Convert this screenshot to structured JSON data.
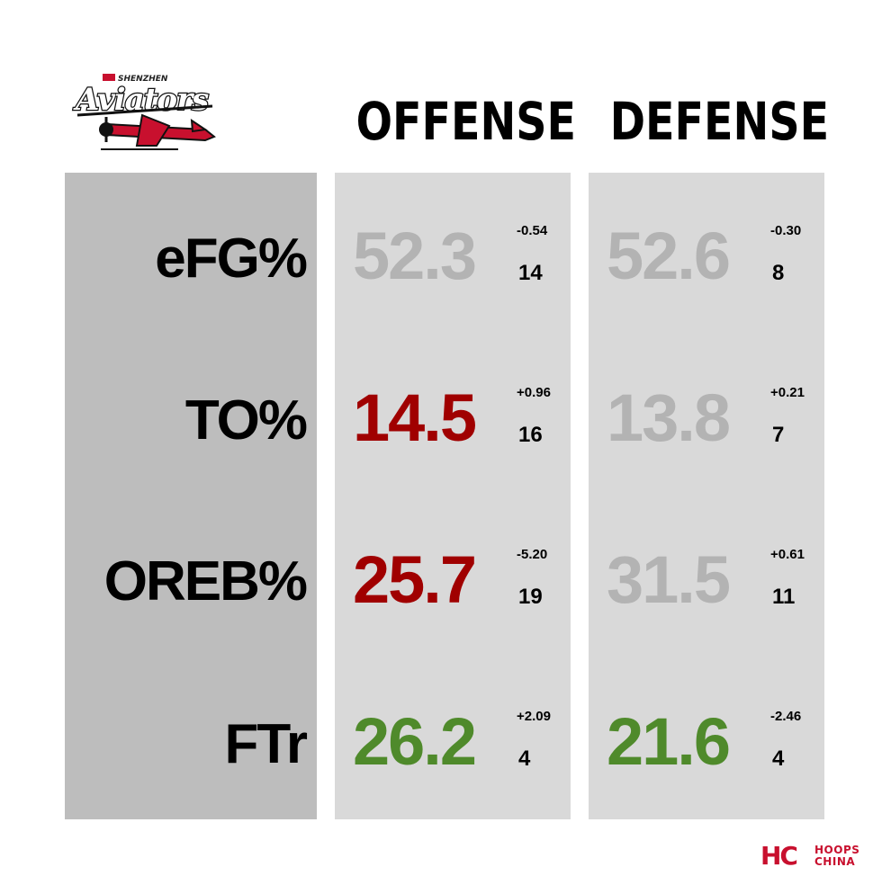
{
  "logo": {
    "text_small": "SHENZHEN",
    "text_main": "Aviators"
  },
  "headers": {
    "offense": "OFFENSE",
    "defense": "DEFENSE"
  },
  "colors": {
    "gray": "#b3b3b3",
    "red": "#a00000",
    "green": "#4f8a2b",
    "brand_red": "#c8102e"
  },
  "rows": [
    {
      "label": "eFG%",
      "offense": {
        "value": "52.3",
        "delta": "-0.54",
        "rank": "14",
        "color": "gray"
      },
      "defense": {
        "value": "52.6",
        "delta": "-0.30",
        "rank": "8",
        "color": "gray"
      }
    },
    {
      "label": "TO%",
      "offense": {
        "value": "14.5",
        "delta": "+0.96",
        "rank": "16",
        "color": "red"
      },
      "defense": {
        "value": "13.8",
        "delta": "+0.21",
        "rank": "7",
        "color": "gray"
      }
    },
    {
      "label": "OREB%",
      "offense": {
        "value": "25.7",
        "delta": "-5.20",
        "rank": "19",
        "color": "red"
      },
      "defense": {
        "value": "31.5",
        "delta": "+0.61",
        "rank": "11",
        "color": "gray"
      }
    },
    {
      "label": "FTr",
      "offense": {
        "value": "26.2",
        "delta": "+2.09",
        "rank": "4",
        "color": "green"
      },
      "defense": {
        "value": "21.6",
        "delta": "-2.46",
        "rank": "4",
        "color": "green"
      }
    }
  ],
  "brand": {
    "mark": "HC",
    "line1": "HOOPS",
    "line2": "CHINA"
  }
}
